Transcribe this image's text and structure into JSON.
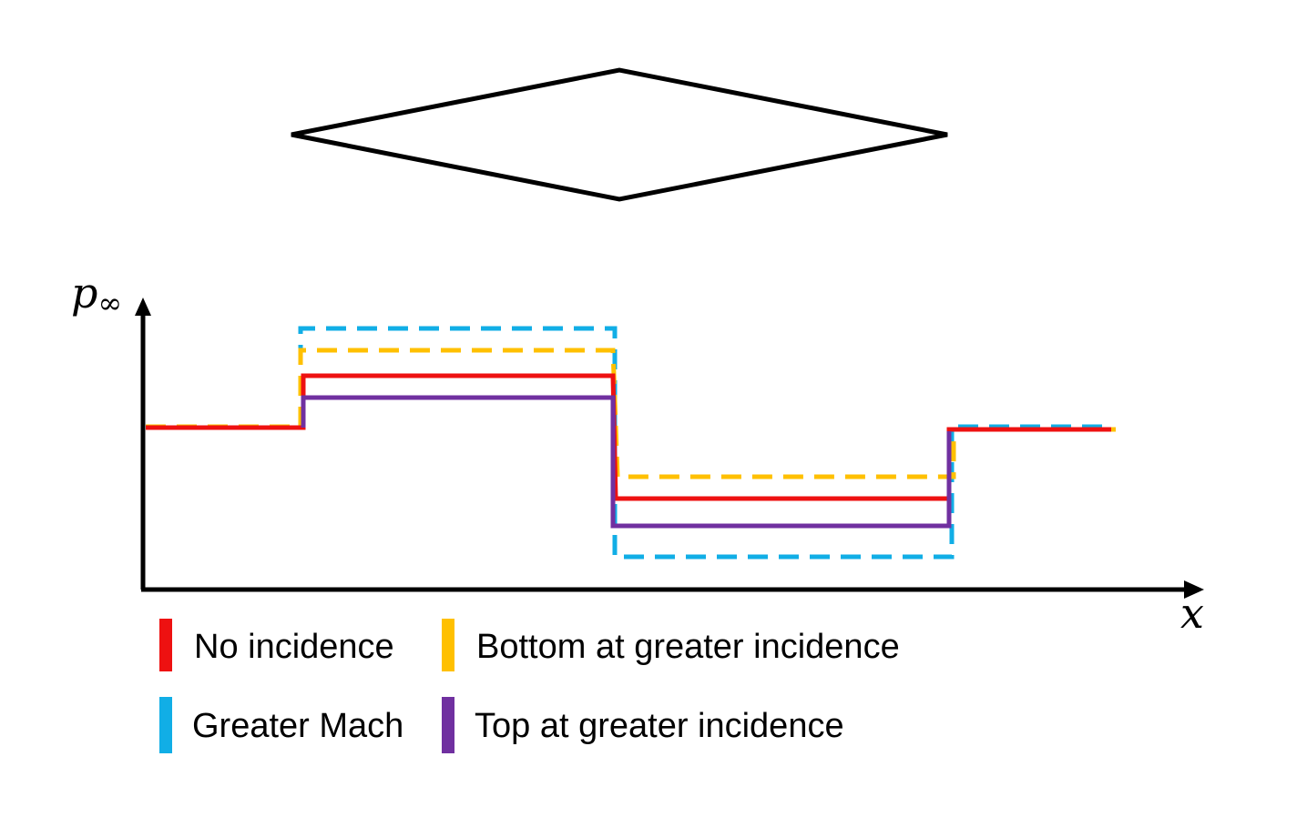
{
  "axes": {
    "y_label_main": "p",
    "y_label_sub": "∞",
    "x_label": "x"
  },
  "airfoil": {
    "shape": "diamond"
  },
  "series": [
    {
      "key": "no_incidence",
      "label": "No incidence",
      "color": "#ee1111",
      "style": "solid"
    },
    {
      "key": "greater_mach",
      "label": "Greater Mach",
      "color": "#11aee6",
      "style": "dashed"
    },
    {
      "key": "bottom_greater_incidence",
      "label": "Bottom at greater incidence",
      "color": "#ffc000",
      "style": "dashed"
    },
    {
      "key": "top_greater_incidence",
      "label": "Top at greater incidence",
      "color": "#7030a0",
      "style": "solid"
    }
  ],
  "legend": {
    "items": [
      {
        "label": "No incidence",
        "color": "#ee1111"
      },
      {
        "label": "Bottom at greater incidence",
        "color": "#ffc000"
      },
      {
        "label": "Greater Mach",
        "color": "#11aee6"
      },
      {
        "label": "Top at greater incidence",
        "color": "#7030a0"
      }
    ]
  }
}
